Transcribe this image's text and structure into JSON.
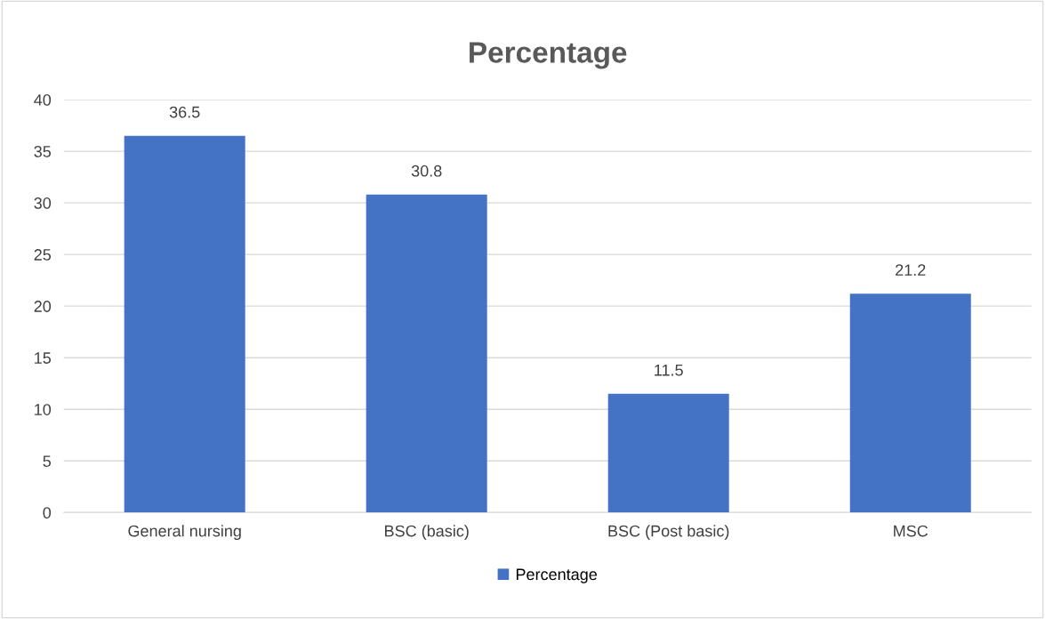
{
  "chart_data": {
    "type": "bar",
    "title": "Percentage",
    "categories": [
      "General nursing",
      "BSC (basic)",
      "BSC (Post basic)",
      "MSC"
    ],
    "series": [
      {
        "name": "Percentage",
        "color": "#4472c4",
        "values": [
          36.5,
          30.8,
          11.5,
          21.2
        ]
      }
    ],
    "ylim": [
      0,
      40
    ],
    "yticks": [
      0,
      5,
      10,
      15,
      20,
      25,
      30,
      35,
      40
    ],
    "grid": "y",
    "legend": "bottom",
    "data_labels": true
  }
}
